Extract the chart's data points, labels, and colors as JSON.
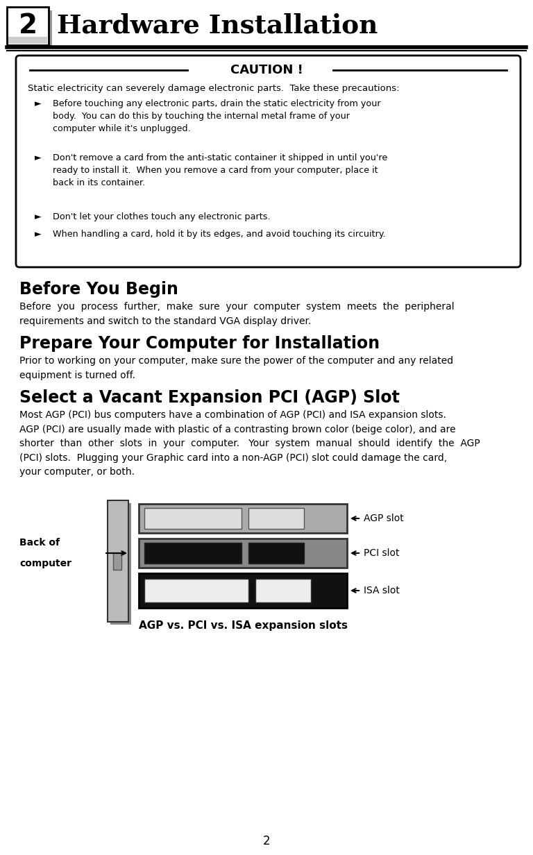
{
  "title": "Hardware Installation",
  "chapter_num": "2",
  "bg_color": "#ffffff",
  "caution_title": "CAUTION !",
  "caution_intro": "Static electricity can severely damage electronic parts.  Take these precautions:",
  "caution_bullets": [
    "Before touching any electronic parts, drain the static electricity from your\nbody.  You can do this by touching the internal metal frame of your\ncomputer while it's unplugged.",
    "Don't remove a card from the anti-static container it shipped in until you're\nready to install it.  When you remove a card from your computer, place it\nback in its container.",
    "Don't let your clothes touch any electronic parts.",
    "When handling a card, hold it by its edges, and avoid touching its circuitry."
  ],
  "section1_title": "Before You Begin",
  "section1_body": "Before  you  process  further,  make  sure  your  computer  system  meets  the  peripheral\nrequirements and switch to the standard VGA display driver.",
  "section2_title": "Prepare Your Computer for Installation",
  "section2_body": "Prior to working on your computer, make sure the power of the computer and any related\nequipment is turned off.",
  "section3_title": "Select a Vacant Expansion PCI (AGP) Slot",
  "section3_body": "Most AGP (PCI) bus computers have a combination of AGP (PCI) and ISA expansion slots.\nAGP (PCI) are usually made with plastic of a contrasting brown color (beige color), and are\nshorter  than  other  slots  in  your  computer.   Your  system  manual  should  identify  the  AGP\n(PCI) slots.  Plugging your Graphic card into a non-AGP (PCI) slot could damage the card,\nyour computer, or both.",
  "diagram_caption": "AGP vs. PCI vs. ISA expansion slots",
  "labels_right": [
    "AGP slot",
    "PCI slot",
    "ISA slot"
  ],
  "label_left1": "Back of",
  "label_left2": "computer",
  "page_num": "2"
}
